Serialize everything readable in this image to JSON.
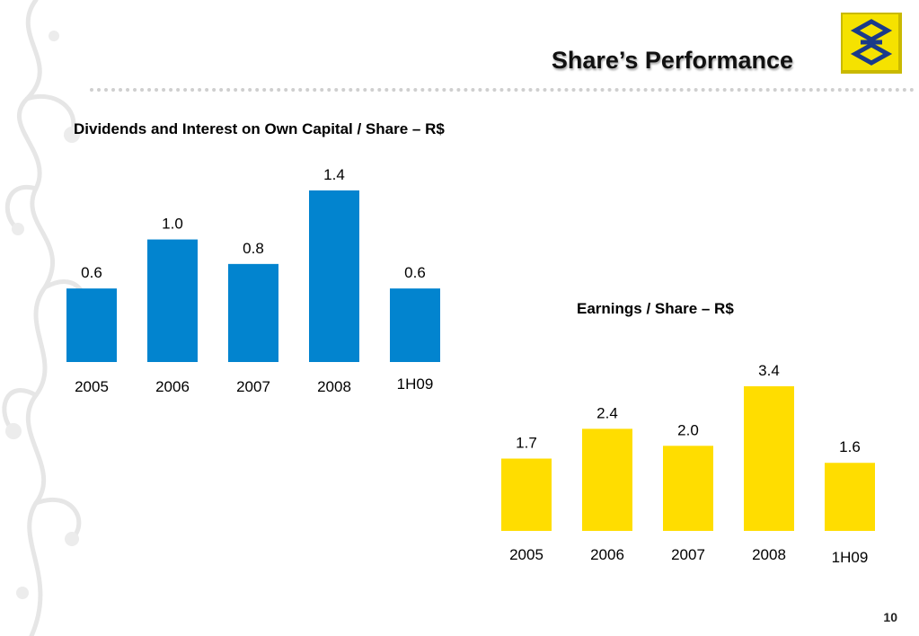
{
  "header": {
    "title": "Share’s Performance"
  },
  "footer": {
    "page_number": "10"
  },
  "colors": {
    "dividends_bar": "#0284cf",
    "eps_bar": "#ffdd00",
    "logo_yellow": "#f5e200",
    "logo_blue": "#1a3a8a"
  },
  "chart_data": [
    {
      "type": "bar",
      "title": "Dividends and Interest on Own Capital / Share – R$",
      "categories": [
        "2005",
        "2006",
        "2007",
        "2008",
        "1H09"
      ],
      "values": [
        0.6,
        1.0,
        0.8,
        1.4,
        0.6
      ],
      "value_labels": [
        "0.6",
        "1.0",
        "0.8",
        "1.4",
        "0.6"
      ],
      "color": "#0284cf",
      "grid": false,
      "ylim": [
        0,
        1.4
      ]
    },
    {
      "type": "bar",
      "title": "Earnings / Share – R$",
      "categories": [
        "2005",
        "2006",
        "2007",
        "2008",
        "1H09"
      ],
      "values": [
        1.7,
        2.4,
        2.0,
        3.4,
        1.6
      ],
      "value_labels": [
        "1.7",
        "2.4",
        "2.0",
        "3.4",
        "1.6"
      ],
      "color": "#ffdd00",
      "grid": false,
      "ylim": [
        0,
        3.4
      ]
    }
  ]
}
